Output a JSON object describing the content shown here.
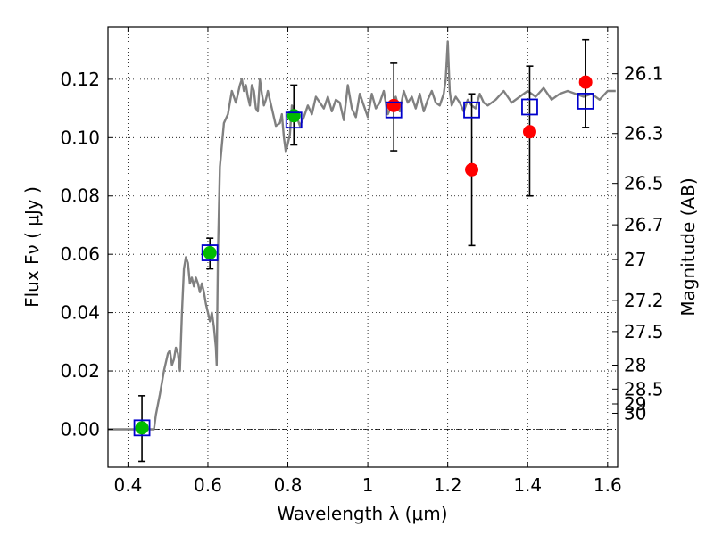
{
  "chart_data": {
    "type": "scatter",
    "xlabel": "Wavelength  λ (μm)",
    "ylabel": "Flux  Fν  ( μJy )",
    "ylabel_right": "Magnitude (AB)",
    "xlim": [
      0.35,
      1.625
    ],
    "ylim": [
      -0.013,
      0.138
    ],
    "grid": true,
    "x_ticks": [
      0.4,
      0.6,
      0.8,
      1.0,
      1.2,
      1.4,
      1.6
    ],
    "x_tick_labels": [
      "0.4",
      "0.6",
      "0.8",
      "1",
      "1.2",
      "1.4",
      "1.6"
    ],
    "y_ticks": [
      0.0,
      0.02,
      0.04,
      0.06,
      0.08,
      0.1,
      0.12
    ],
    "y_tick_labels": [
      "0.00",
      "0.02",
      "0.04",
      "0.06",
      "0.08",
      "0.10",
      "0.12"
    ],
    "right_ticks": [
      {
        "flux": 0.1219,
        "label": "26.1"
      },
      {
        "flux": 0.1014,
        "label": "26.3"
      },
      {
        "flux": 0.0843,
        "label": "26.5"
      },
      {
        "flux": 0.0701,
        "label": "26.7"
      },
      {
        "flux": 0.0582,
        "label": "27"
      },
      {
        "flux": 0.0442,
        "label": "27.2"
      },
      {
        "flux": 0.0335,
        "label": "27.5"
      },
      {
        "flux": 0.022,
        "label": "28"
      },
      {
        "flux": 0.0138,
        "label": "28.5"
      },
      {
        "flux": 0.0087,
        "label": "29"
      },
      {
        "flux": 0.0055,
        "label": "30"
      }
    ],
    "series": [
      {
        "kind": "line",
        "color": "#808080",
        "x": [
          0.35,
          0.4,
          0.45,
          0.465,
          0.47,
          0.48,
          0.49,
          0.5,
          0.505,
          0.51,
          0.515,
          0.52,
          0.525,
          0.53,
          0.535,
          0.54,
          0.545,
          0.55,
          0.555,
          0.56,
          0.565,
          0.57,
          0.575,
          0.58,
          0.585,
          0.59,
          0.595,
          0.6,
          0.605,
          0.61,
          0.615,
          0.62,
          0.622,
          0.625,
          0.63,
          0.64,
          0.65,
          0.66,
          0.67,
          0.68,
          0.685,
          0.69,
          0.695,
          0.7,
          0.705,
          0.71,
          0.715,
          0.72,
          0.725,
          0.73,
          0.735,
          0.74,
          0.745,
          0.75,
          0.76,
          0.77,
          0.78,
          0.785,
          0.79,
          0.795,
          0.8,
          0.805,
          0.81,
          0.82,
          0.83,
          0.84,
          0.85,
          0.86,
          0.87,
          0.88,
          0.89,
          0.9,
          0.91,
          0.92,
          0.93,
          0.94,
          0.95,
          0.96,
          0.97,
          0.98,
          0.99,
          1.0,
          1.01,
          1.02,
          1.03,
          1.04,
          1.05,
          1.06,
          1.07,
          1.08,
          1.09,
          1.1,
          1.11,
          1.12,
          1.13,
          1.14,
          1.15,
          1.16,
          1.17,
          1.18,
          1.19,
          1.195,
          1.2,
          1.205,
          1.21,
          1.22,
          1.23,
          1.24,
          1.25,
          1.26,
          1.27,
          1.28,
          1.29,
          1.3,
          1.32,
          1.34,
          1.36,
          1.38,
          1.4,
          1.42,
          1.44,
          1.46,
          1.48,
          1.5,
          1.52,
          1.54,
          1.56,
          1.58,
          1.6,
          1.62
        ],
        "y": [
          0.0,
          0.0,
          0.0,
          0.0,
          0.005,
          0.012,
          0.02,
          0.026,
          0.027,
          0.022,
          0.024,
          0.028,
          0.026,
          0.02,
          0.04,
          0.055,
          0.059,
          0.057,
          0.05,
          0.052,
          0.049,
          0.052,
          0.05,
          0.047,
          0.05,
          0.047,
          0.043,
          0.04,
          0.037,
          0.04,
          0.035,
          0.028,
          0.022,
          0.06,
          0.09,
          0.105,
          0.108,
          0.116,
          0.112,
          0.118,
          0.12,
          0.116,
          0.118,
          0.114,
          0.111,
          0.118,
          0.116,
          0.11,
          0.109,
          0.12,
          0.115,
          0.111,
          0.113,
          0.116,
          0.11,
          0.104,
          0.105,
          0.108,
          0.1,
          0.095,
          0.098,
          0.101,
          0.111,
          0.108,
          0.104,
          0.107,
          0.111,
          0.108,
          0.114,
          0.112,
          0.11,
          0.114,
          0.109,
          0.113,
          0.112,
          0.106,
          0.118,
          0.11,
          0.107,
          0.115,
          0.111,
          0.107,
          0.115,
          0.11,
          0.112,
          0.116,
          0.108,
          0.111,
          0.114,
          0.109,
          0.116,
          0.112,
          0.114,
          0.11,
          0.115,
          0.109,
          0.113,
          0.116,
          0.112,
          0.111,
          0.115,
          0.12,
          0.133,
          0.116,
          0.111,
          0.114,
          0.112,
          0.109,
          0.113,
          0.111,
          0.11,
          0.115,
          0.112,
          0.111,
          0.113,
          0.116,
          0.112,
          0.114,
          0.116,
          0.114,
          0.117,
          0.113,
          0.115,
          0.116,
          0.115,
          0.114,
          0.115,
          0.113,
          0.116,
          0.116
        ]
      },
      {
        "kind": "points",
        "marker": "circle",
        "color": "#00bb00",
        "x": [
          0.435,
          0.605,
          0.815
        ],
        "y": [
          0.0005,
          0.0605,
          0.1075
        ]
      },
      {
        "kind": "points",
        "marker": "circle",
        "color": "#ff0000",
        "x": [
          1.065,
          1.26,
          1.405,
          1.545
        ],
        "y": [
          0.111,
          0.089,
          0.102,
          0.119
        ]
      },
      {
        "kind": "points",
        "marker": "open-square",
        "color": "#0000cc",
        "x": [
          0.435,
          0.605,
          0.815,
          1.065,
          1.26,
          1.405,
          1.545
        ],
        "y": [
          0.0005,
          0.0605,
          0.106,
          0.1095,
          0.1095,
          0.1105,
          0.1125
        ]
      },
      {
        "kind": "errorbars",
        "color": "#000000",
        "x": [
          0.435,
          0.605,
          0.815,
          1.065,
          1.26,
          1.405,
          1.545
        ],
        "low": [
          -0.011,
          0.055,
          0.0975,
          0.0955,
          0.063,
          0.08,
          0.1035
        ],
        "high": [
          0.0115,
          0.0655,
          0.118,
          0.1255,
          0.115,
          0.1245,
          0.1335
        ]
      }
    ]
  }
}
